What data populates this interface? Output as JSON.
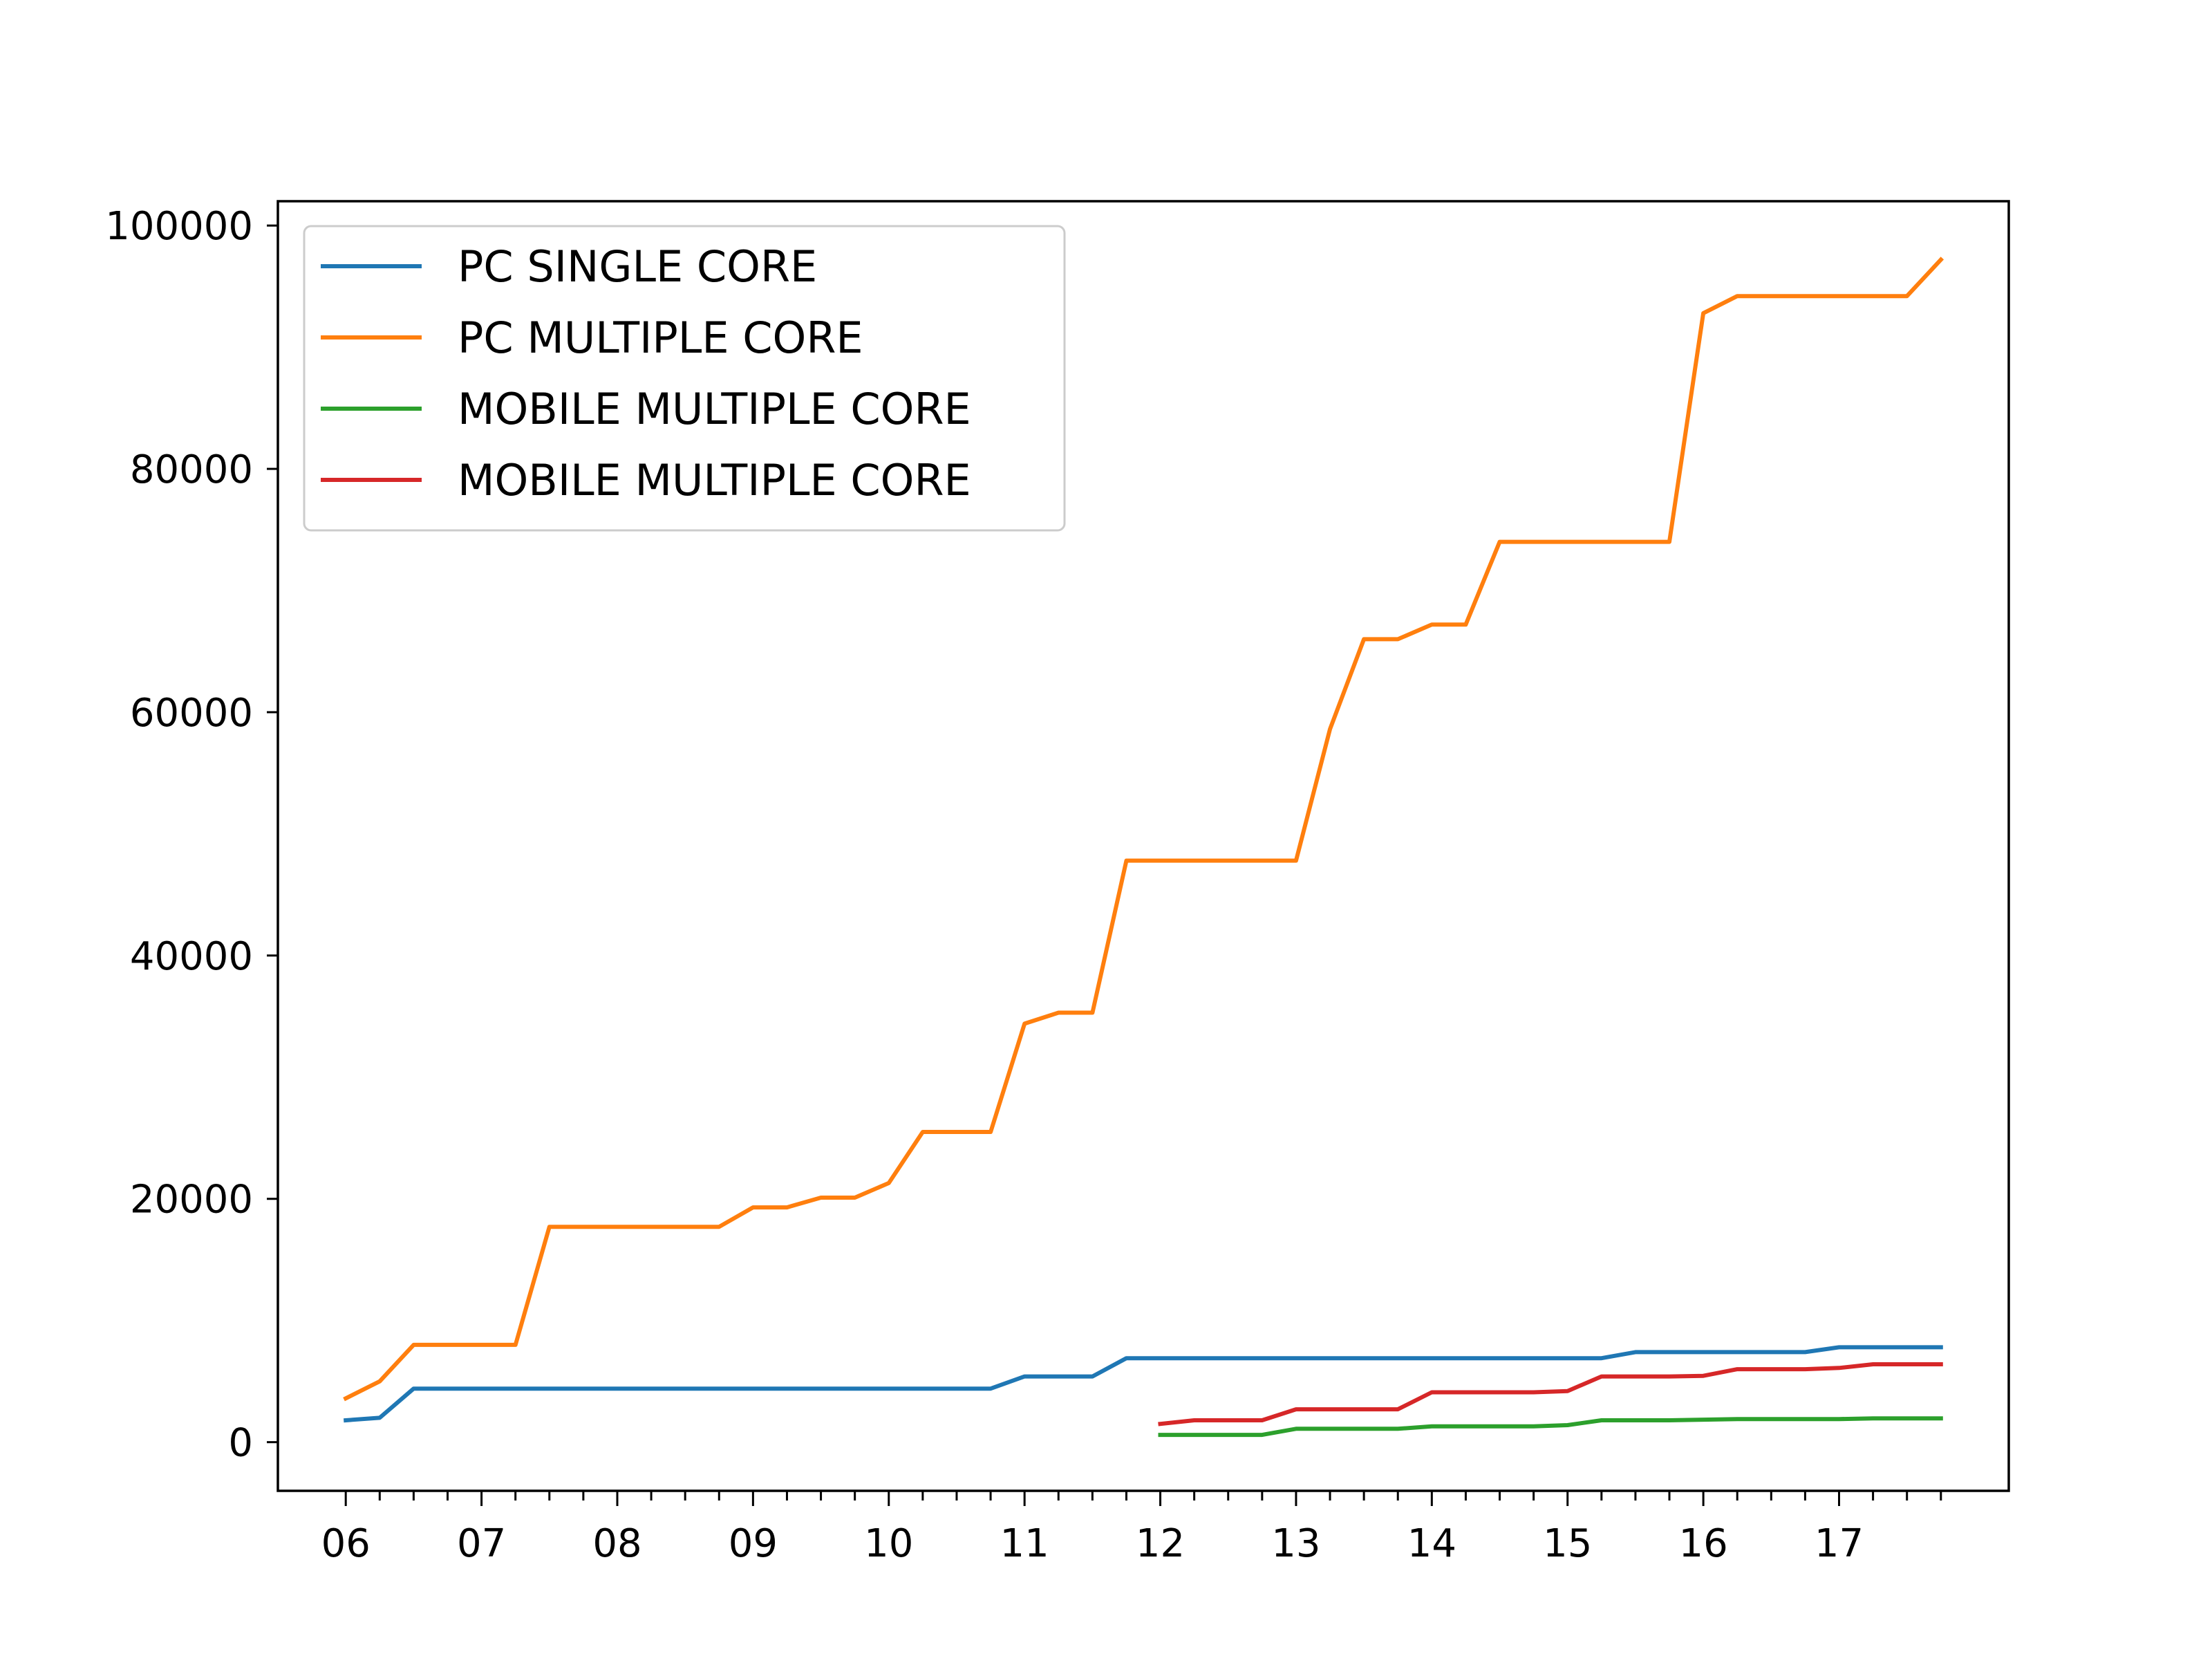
{
  "chart_data": {
    "type": "line",
    "title": "",
    "xlabel": "",
    "ylabel": "",
    "x": [
      "2006-01",
      "2006-04",
      "2006-07",
      "2006-10",
      "2007-01",
      "2007-04",
      "2007-07",
      "2007-10",
      "2008-01",
      "2008-04",
      "2008-07",
      "2008-10",
      "2009-01",
      "2009-04",
      "2009-07",
      "2009-10",
      "2010-01",
      "2010-04",
      "2010-07",
      "2010-10",
      "2011-01",
      "2011-04",
      "2011-07",
      "2011-10",
      "2012-01",
      "2012-04",
      "2012-07",
      "2012-10",
      "2013-01",
      "2013-04",
      "2013-07",
      "2013-10",
      "2014-01",
      "2014-04",
      "2014-07",
      "2014-10",
      "2015-01",
      "2015-04",
      "2015-07",
      "2015-10",
      "2016-01",
      "2016-04",
      "2016-07",
      "2016-10",
      "2017-01",
      "2017-04",
      "2017-07",
      "2017-10"
    ],
    "xticks": [
      "06",
      "07",
      "08",
      "09",
      "10",
      "11",
      "12",
      "13",
      "14",
      "15",
      "16",
      "17"
    ],
    "yticks": [
      0,
      20000,
      40000,
      60000,
      80000,
      100000
    ],
    "xlim": [
      "2005-07",
      "2018-04"
    ],
    "ylim": [
      -4000,
      102000
    ],
    "grid": false,
    "legend_position": "top-left",
    "series": [
      {
        "name": "PC SINGLE CORE",
        "color": "#1f77b4",
        "values": [
          1800,
          2000,
          4400,
          4400,
          4400,
          4400,
          4400,
          4400,
          4400,
          4400,
          4400,
          4400,
          4400,
          4400,
          4400,
          4400,
          4400,
          4400,
          4400,
          4400,
          5400,
          5400,
          5400,
          6900,
          6900,
          6900,
          6900,
          6900,
          6900,
          6900,
          6900,
          6900,
          6900,
          6900,
          6900,
          6900,
          6900,
          6900,
          7400,
          7400,
          7400,
          7400,
          7400,
          7400,
          7800,
          7800,
          7800,
          7800
        ]
      },
      {
        "name": "PC MULTIPLE CORE",
        "color": "#ff7f0e",
        "values": [
          3600,
          5000,
          8000,
          8000,
          8000,
          8000,
          17700,
          17700,
          17700,
          17700,
          17700,
          17700,
          19300,
          19300,
          20100,
          20100,
          21300,
          25500,
          25500,
          25500,
          34400,
          35300,
          35300,
          47800,
          47800,
          47800,
          47800,
          47800,
          47800,
          58600,
          66000,
          66000,
          67200,
          67200,
          74000,
          74000,
          74000,
          74000,
          74000,
          74000,
          92800,
          94200,
          94200,
          94200,
          94200,
          94200,
          94200,
          97200
        ]
      },
      {
        "name": "MOBILE MULTIPLE CORE",
        "color": "#2ca02c",
        "values": [
          null,
          null,
          null,
          null,
          null,
          null,
          null,
          null,
          null,
          null,
          null,
          null,
          null,
          null,
          null,
          null,
          null,
          null,
          null,
          null,
          null,
          null,
          null,
          null,
          600,
          600,
          600,
          600,
          1100,
          1100,
          1100,
          1100,
          1300,
          1300,
          1300,
          1300,
          1400,
          1800,
          1800,
          1800,
          1850,
          1900,
          1900,
          1900,
          1900,
          1950,
          1950,
          1950
        ]
      },
      {
        "name": "MOBILE MULTIPLE CORE",
        "color": "#d62728",
        "values": [
          null,
          null,
          null,
          null,
          null,
          null,
          null,
          null,
          null,
          null,
          null,
          null,
          null,
          null,
          null,
          null,
          null,
          null,
          null,
          null,
          null,
          null,
          null,
          null,
          1500,
          1800,
          1800,
          1800,
          2700,
          2700,
          2700,
          2700,
          4100,
          4100,
          4100,
          4100,
          4200,
          5400,
          5400,
          5400,
          5450,
          6000,
          6000,
          6000,
          6100,
          6400,
          6400,
          6400
        ]
      }
    ]
  }
}
